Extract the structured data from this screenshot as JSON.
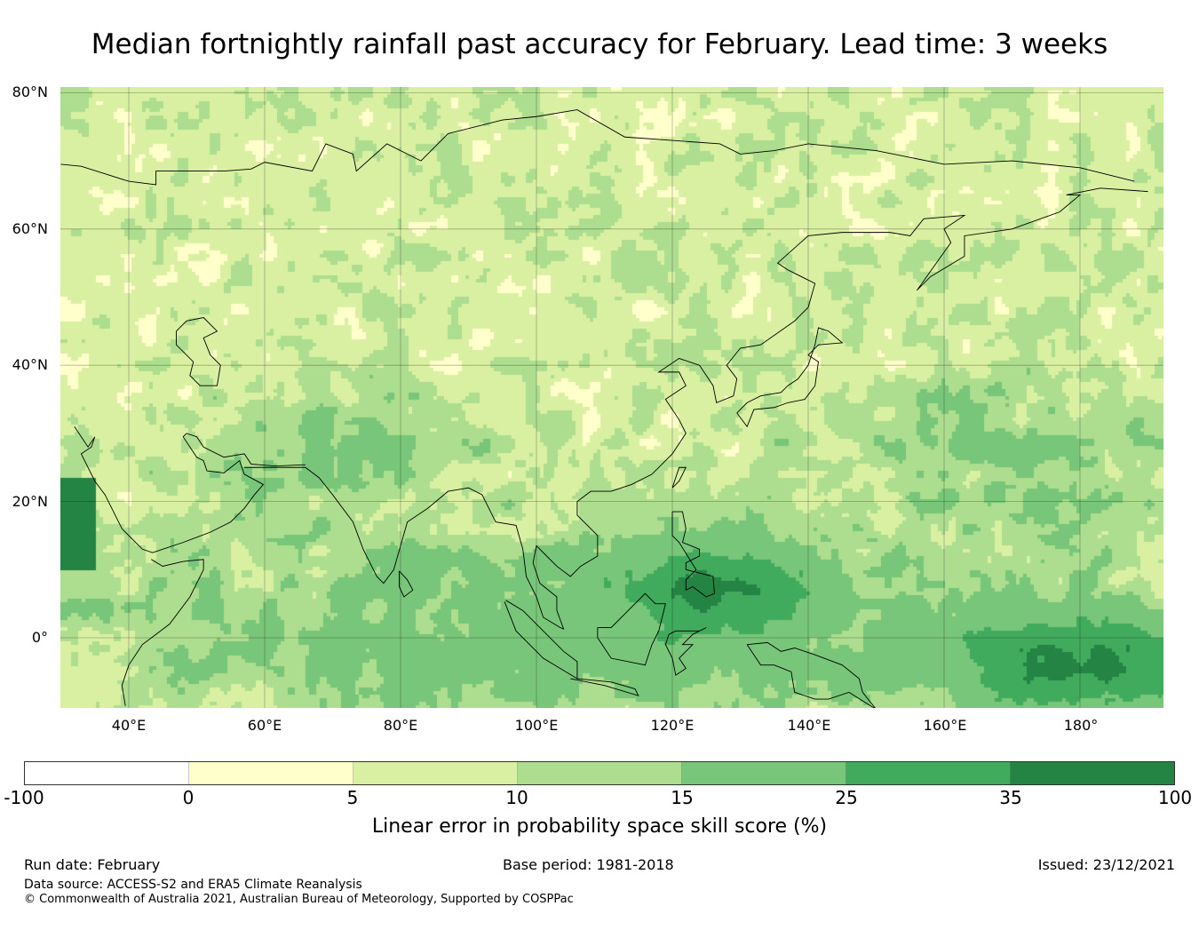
{
  "title": "Median fortnightly rainfall past accuracy for February. Lead time: 3 weeks",
  "map": {
    "lat_labels": [
      "80°N",
      "60°N",
      "40°N",
      "20°N",
      "0°"
    ],
    "lon_labels": [
      "40°E",
      "60°E",
      "80°E",
      "100°E",
      "120°E",
      "140°E",
      "160°E",
      "180°"
    ]
  },
  "colorbar": {
    "ticks": [
      "-100",
      "0",
      "5",
      "10",
      "15",
      "25",
      "35",
      "100"
    ],
    "colors": [
      "#ffffff",
      "#ffffcc",
      "#d9f0a3",
      "#addd8e",
      "#78c679",
      "#41ab5d",
      "#238443"
    ],
    "label": "Linear error in probability space skill score (%)"
  },
  "footer": {
    "run_date": "Run date: February",
    "base_period": "Base period: 1981-2018",
    "issued": "Issued: 23/12/2021",
    "data_source": "Data source: ACCESS-S2 and ERA5 Climate Reanalysis",
    "copyright": "© Commonwealth of Australia 2021, Australian Bureau of Meteorology, Supported by COSPPac"
  }
}
